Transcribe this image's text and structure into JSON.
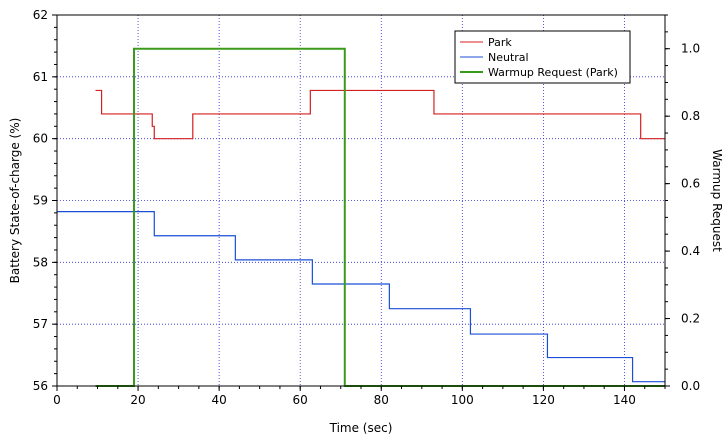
{
  "chart_data": {
    "type": "line",
    "xlabel": "Time (sec)",
    "ylabel": "Battery State-of-charge (%)",
    "y2label": "Warmup Request",
    "xlim": [
      0,
      150
    ],
    "ylim": [
      56,
      62
    ],
    "y2lim": [
      0,
      1.1
    ],
    "x_ticks": [
      "0",
      "20",
      "40",
      "60",
      "80",
      "100",
      "120",
      "140"
    ],
    "y_ticks": [
      "56",
      "57",
      "58",
      "59",
      "60",
      "61",
      "62"
    ],
    "y2_ticks": [
      "0.0",
      "0.2",
      "0.4",
      "0.6",
      "0.8",
      "1.0"
    ],
    "grid": true,
    "legend_position": "top-right",
    "series": [
      {
        "name": "Park",
        "axis": "left",
        "color": "#d42020",
        "step": true,
        "x": [
          9.5,
          11,
          23.5,
          24,
          33.5,
          62.5,
          93,
          144,
          150
        ],
        "y": [
          60.78,
          60.4,
          60.2,
          60.0,
          60.4,
          60.78,
          60.4,
          60.0,
          60.0
        ]
      },
      {
        "name": "Neutral",
        "axis": "left",
        "color": "#1a4fd6",
        "step": true,
        "x": [
          0,
          24,
          44,
          63,
          82,
          102,
          121,
          142,
          150
        ],
        "y": [
          58.82,
          58.43,
          58.04,
          57.65,
          57.25,
          56.84,
          56.46,
          56.07,
          56.07
        ]
      },
      {
        "name": "Warmup Request (Park)",
        "axis": "right",
        "color": "#3a9a1a",
        "step": true,
        "x": [
          9.5,
          19,
          71,
          150
        ],
        "y": [
          0,
          1,
          0,
          0
        ]
      }
    ]
  }
}
